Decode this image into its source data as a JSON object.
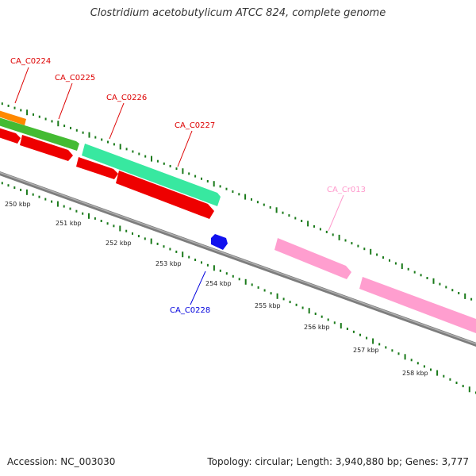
{
  "title": "Clostridium acetobutylicum ATCC 824, complete genome",
  "footer": {
    "accession": "Accession: NC_003030",
    "summary": "Topology: circular; Length: 3,940,880 bp; Genes: 3,777"
  },
  "colors": {
    "backbone": "#8c8c8c",
    "tick": "#1a7a1a",
    "cds": "#ff0000",
    "cds_other": "#0000ff",
    "cds_alt": "#3ee8a0",
    "cds_green": "#44bb33",
    "cds_orange": "#ff8800",
    "rna": "#ff9ecf"
  },
  "scale_labels": [
    "250 kbp",
    "251 kbp",
    "252 kbp",
    "253 kbp",
    "254 kbp",
    "255 kbp",
    "256 kbp",
    "257 kbp",
    "258 kbp"
  ],
  "gene_labels": [
    {
      "name": "CA_C0224",
      "color": "#dd0000"
    },
    {
      "name": "CA_C0225",
      "color": "#dd0000"
    },
    {
      "name": "CA_C0226",
      "color": "#dd0000"
    },
    {
      "name": "CA_C0227",
      "color": "#dd0000"
    },
    {
      "name": "CA_Cr013",
      "color": "#ff99cc"
    },
    {
      "name": "CA_C0228",
      "color": "#0000dd"
    }
  ]
}
